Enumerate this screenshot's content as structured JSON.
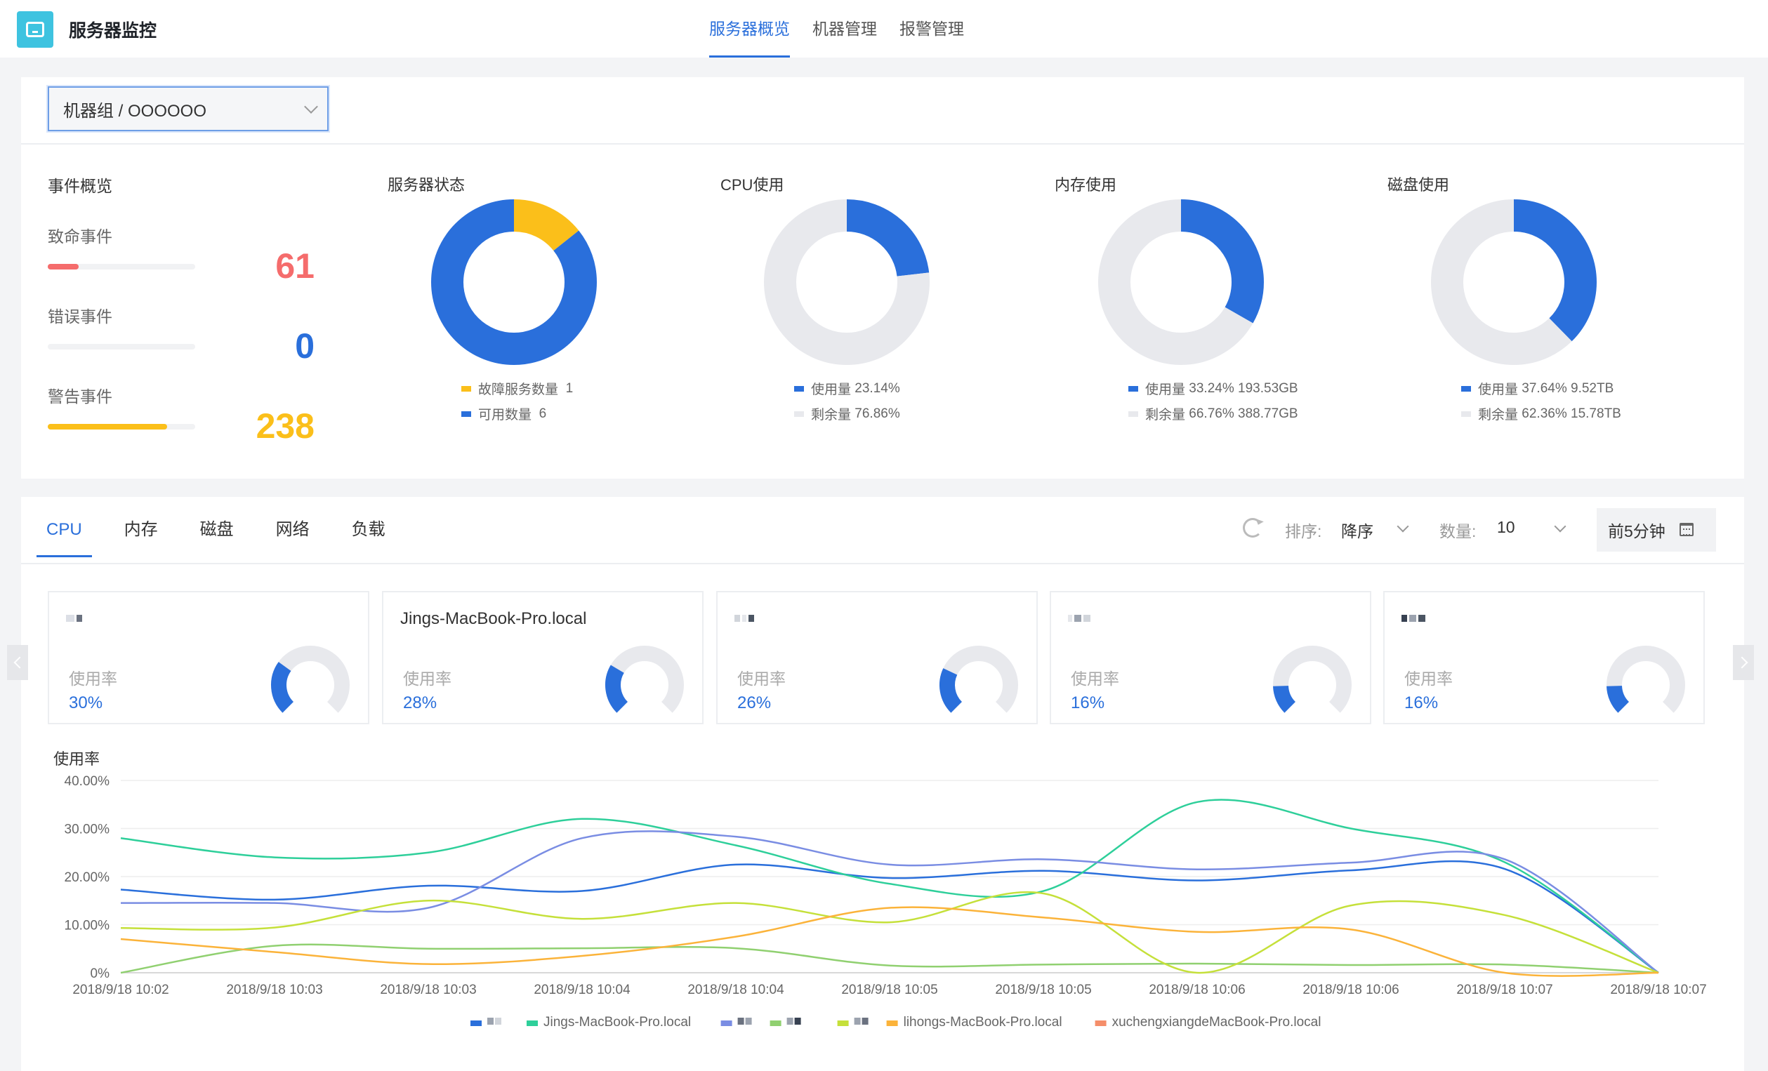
{
  "app": {
    "title": "服务器监控"
  },
  "nav": [
    {
      "label": "服务器概览",
      "active": true
    },
    {
      "label": "机器管理",
      "active": false
    },
    {
      "label": "报警管理",
      "active": false
    }
  ],
  "group_select": {
    "value": "机器组 / OOOOOO"
  },
  "events": {
    "title": "事件概览",
    "items": [
      {
        "label": "致命事件",
        "value": "61",
        "color": "#f56c6c",
        "bar_fraction": 0.21
      },
      {
        "label": "错误事件",
        "value": "0",
        "color": "#2a6fdb",
        "bar_fraction": 0
      },
      {
        "label": "警告事件",
        "value": "238",
        "color": "#fbbf1a",
        "bar_fraction": 0.81
      }
    ]
  },
  "donuts": [
    {
      "title": "服务器状态",
      "slices": [
        {
          "label": "故障服务数量",
          "value_text": "1",
          "value": 1,
          "color": "#fbbf1a"
        },
        {
          "label": "可用数量",
          "value_text": "6",
          "value": 6,
          "color": "#2a6fdb"
        }
      ]
    },
    {
      "title": "CPU使用",
      "slices": [
        {
          "label": "使用量",
          "value_text": "23.14%",
          "value": 23.14,
          "color": "#2a6fdb"
        },
        {
          "label": "剩余量",
          "value_text": "76.86%",
          "value": 76.86,
          "color": "#e8e9ed"
        }
      ]
    },
    {
      "title": "内存使用",
      "slices": [
        {
          "label": "使用量",
          "value_text": "33.24% 193.53GB",
          "value": 33.24,
          "color": "#2a6fdb"
        },
        {
          "label": "剩余量",
          "value_text": "66.76% 388.77GB",
          "value": 66.76,
          "color": "#e8e9ed"
        }
      ]
    },
    {
      "title": "磁盘使用",
      "slices": [
        {
          "label": "使用量",
          "value_text": "37.64% 9.52TB",
          "value": 37.64,
          "color": "#2a6fdb"
        },
        {
          "label": "剩余量",
          "value_text": "62.36% 15.78TB",
          "value": 62.36,
          "color": "#e8e9ed"
        }
      ]
    }
  ],
  "tabs": [
    {
      "label": "CPU",
      "active": true
    },
    {
      "label": "内存",
      "active": false
    },
    {
      "label": "磁盘",
      "active": false
    },
    {
      "label": "网络",
      "active": false
    },
    {
      "label": "负载",
      "active": false
    }
  ],
  "controls": {
    "refresh_icon": "refresh-icon",
    "sort_label": "排序:",
    "sort_value": "降序",
    "count_label": "数量:",
    "count_value": "10",
    "time_range": "前5分钟",
    "calendar_icon": "calendar-icon"
  },
  "cards": [
    {
      "name": "",
      "label": "使用率",
      "value_text": "30%",
      "value": 30
    },
    {
      "name": "Jings-MacBook-Pro.local",
      "label": "使用率",
      "value_text": "28%",
      "value": 28
    },
    {
      "name": "",
      "label": "使用率",
      "value_text": "26%",
      "value": 26
    },
    {
      "name": "",
      "label": "使用率",
      "value_text": "16%",
      "value": 16
    },
    {
      "name": "",
      "label": "使用率",
      "value_text": "16%",
      "value": 16
    }
  ],
  "chart_data": {
    "type": "line",
    "ylabel": "使用率",
    "ylim": [
      0,
      40
    ],
    "yticks": [
      "0%",
      "10.00%",
      "20.00%",
      "30.00%",
      "40.00%"
    ],
    "x": [
      "2018/9/18 10:02",
      "2018/9/18 10:03",
      "2018/9/18 10:03",
      "2018/9/18 10:04",
      "2018/9/18 10:04",
      "2018/9/18 10:05",
      "2018/9/18 10:05",
      "2018/9/18 10:06",
      "2018/9/18 10:06",
      "2018/9/18 10:07",
      "2018/9/18 10:07"
    ],
    "grid": true,
    "legend_position": "bottom",
    "series": [
      {
        "name": "",
        "color": "#2a6fdb",
        "values": [
          17.3,
          15.2,
          18.1,
          17.0,
          22.5,
          19.7,
          21.2,
          19.2,
          21.3,
          21.6,
          0
        ]
      },
      {
        "name": "Jings-MacBook-Pro.local",
        "color": "#2ecf9a",
        "values": [
          28.0,
          24.0,
          25.0,
          32.0,
          26.5,
          18.5,
          17.0,
          35.5,
          30.0,
          23.0,
          0
        ]
      },
      {
        "name": "",
        "color": "#7a8de3",
        "values": [
          14.5,
          14.5,
          13.5,
          28.0,
          28.3,
          22.5,
          23.6,
          21.5,
          22.9,
          23.6,
          0
        ]
      },
      {
        "name": "",
        "color": "#90d070",
        "values": [
          0,
          5.6,
          5.0,
          5.1,
          5.1,
          1.5,
          1.7,
          1.9,
          1.6,
          1.7,
          0
        ]
      },
      {
        "name": "",
        "color": "#c5e03a",
        "values": [
          9.3,
          9.4,
          15.0,
          11.2,
          14.5,
          10.5,
          16.5,
          0,
          14.0,
          12.0,
          0
        ]
      },
      {
        "name": "lihongs-MacBook-Pro.local",
        "color": "#fbb33a",
        "values": [
          7.0,
          4.3,
          1.8,
          3.5,
          7.5,
          13.5,
          11.5,
          8.5,
          9.0,
          0,
          0
        ]
      },
      {
        "name": "xuchengxiangdeMacBook-Pro.local",
        "color": "#f58e6a",
        "values": [
          null,
          null,
          null,
          null,
          null,
          null,
          null,
          null,
          null,
          null,
          null
        ]
      }
    ]
  },
  "colors": {
    "accent": "#2a6fdb",
    "track": "#e8e9ed"
  }
}
